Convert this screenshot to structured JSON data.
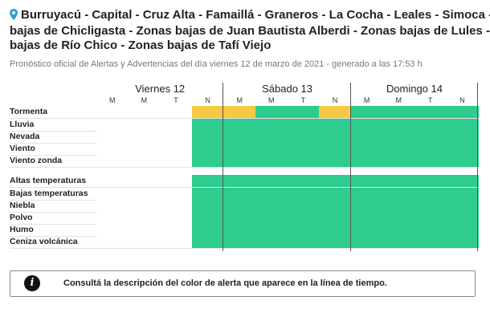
{
  "header": {
    "location_icon": "map-pin-icon",
    "title_line1": "Burruyacú - Capital - Cruz Alta - Famaillá - Graneros - La Cocha - Leales - Simoca - Zonas",
    "title_line2": "bajas de Chicligasta - Zonas bajas de Juan Bautista Alberdi - Zonas bajas de Lules - Zonas",
    "title_line3": "bajas de Río Chico - Zonas bajas de Tafí Viejo",
    "subtitle": "Pronóstico oficial de Alertas y Advertencias del día viernes 12 de marzo de 2021 - generado a las 17:53 h"
  },
  "colors": {
    "green": "#2ecc8f",
    "yellow": "#f6c844",
    "empty": "#ffffff"
  },
  "timeline": {
    "days": [
      {
        "label": "Viernes 12",
        "slots": [
          "M",
          "M",
          "T",
          "N"
        ]
      },
      {
        "label": "Sábado 13",
        "slots": [
          "M",
          "M",
          "T",
          "N"
        ]
      },
      {
        "label": "Domingo 14",
        "slots": [
          "M",
          "M",
          "T",
          "N"
        ]
      }
    ],
    "rows": [
      {
        "label": "Tormenta",
        "cells": [
          "e",
          "e",
          "e",
          "y",
          "y",
          "g",
          "g",
          "y",
          "g",
          "g",
          "g",
          "g"
        ]
      },
      {
        "label": "Lluvia",
        "cells": [
          "e",
          "e",
          "e",
          "g",
          "g",
          "g",
          "g",
          "g",
          "g",
          "g",
          "g",
          "g"
        ]
      },
      {
        "label": "Nevada",
        "cells": [
          "e",
          "e",
          "e",
          "g",
          "g",
          "g",
          "g",
          "g",
          "g",
          "g",
          "g",
          "g"
        ]
      },
      {
        "label": "Viento",
        "cells": [
          "e",
          "e",
          "e",
          "g",
          "g",
          "g",
          "g",
          "g",
          "g",
          "g",
          "g",
          "g"
        ]
      },
      {
        "label": "Viento zonda",
        "cells": [
          "e",
          "e",
          "e",
          "g",
          "g",
          "g",
          "g",
          "g",
          "g",
          "g",
          "g",
          "g"
        ]
      },
      {
        "label": "Altas temperaturas",
        "cells": [
          "e",
          "e",
          "e",
          "g",
          "g",
          "g",
          "g",
          "g",
          "g",
          "g",
          "g",
          "g"
        ]
      },
      {
        "label": "Bajas temperaturas",
        "cells": [
          "e",
          "e",
          "e",
          "g",
          "g",
          "g",
          "g",
          "g",
          "g",
          "g",
          "g",
          "g"
        ]
      },
      {
        "label": "Niebla",
        "cells": [
          "e",
          "e",
          "e",
          "g",
          "g",
          "g",
          "g",
          "g",
          "g",
          "g",
          "g",
          "g"
        ]
      },
      {
        "label": "Polvo",
        "cells": [
          "e",
          "e",
          "e",
          "g",
          "g",
          "g",
          "g",
          "g",
          "g",
          "g",
          "g",
          "g"
        ]
      },
      {
        "label": "Humo",
        "cells": [
          "e",
          "e",
          "e",
          "g",
          "g",
          "g",
          "g",
          "g",
          "g",
          "g",
          "g",
          "g"
        ]
      },
      {
        "label": "Ceniza volcánica",
        "cells": [
          "e",
          "e",
          "e",
          "g",
          "g",
          "g",
          "g",
          "g",
          "g",
          "g",
          "g",
          "g"
        ]
      }
    ]
  },
  "legend": {
    "icon": "info-icon",
    "icon_glyph": "i",
    "text": "Consultá la descripción del color de alerta que aparece en la línea de tiempo."
  }
}
